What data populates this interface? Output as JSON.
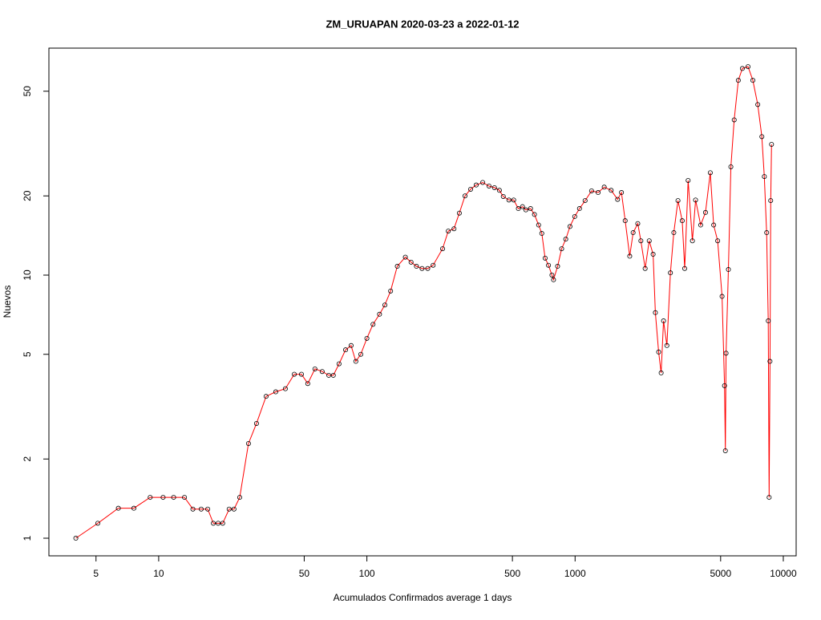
{
  "chart_data": {
    "type": "line",
    "title": "ZM_URUAPAN 2020-03-23 a 2022-01-12",
    "x_label": "Acumulados Confirmados average  1  days",
    "y_label": "Nuevos",
    "log_x": true,
    "log_y": true,
    "color": "#ff0000",
    "marker_color": "#000000",
    "xlim": [
      2.97,
      11527
    ],
    "ylim": [
      0.857,
      72.9
    ],
    "xticks": [
      5,
      10,
      50,
      100,
      500,
      1000,
      5000,
      10000
    ],
    "yticks": [
      1,
      2,
      5,
      10,
      20,
      50
    ],
    "x": [
      4,
      5.1,
      6.4,
      7.6,
      9.1,
      10.5,
      11.8,
      13.3,
      14.6,
      16,
      17.2,
      18.3,
      19.3,
      20.3,
      21.8,
      23,
      24.5,
      27,
      29.5,
      32.8,
      36.5,
      40.6,
      44.8,
      48.5,
      52,
      56.3,
      61,
      65.6,
      69,
      73.5,
      79,
      84,
      88.5,
      93.5,
      100,
      107,
      115,
      122,
      130,
      140,
      153,
      163,
      173,
      184,
      196,
      208,
      231,
      246,
      262,
      278,
      296,
      315,
      335,
      360,
      386,
      410,
      433,
      452,
      481,
      507,
      534,
      559,
      580,
      611,
      638,
      668,
      692,
      718,
      745,
      774,
      788,
      824,
      862,
      902,
      945,
      996,
      1050,
      1117,
      1200,
      1290,
      1380,
      1490,
      1600,
      1670,
      1740,
      1830,
      1900,
      2000,
      2070,
      2170,
      2270,
      2370,
      2430,
      2520,
      2590,
      2660,
      2760,
      2870,
      2980,
      3120,
      3270,
      3360,
      3490,
      3660,
      3790,
      4010,
      4230,
      4460,
      4630,
      4840,
      5080,
      5220,
      5270,
      5310,
      5450,
      5600,
      5810,
      6080,
      6360,
      6770,
      7140,
      7540,
      7890,
      8110,
      8320,
      8470,
      8550,
      8630,
      8700,
      8780
    ],
    "values": [
      1,
      1.14,
      1.3,
      1.3,
      1.43,
      1.43,
      1.43,
      1.43,
      1.29,
      1.29,
      1.29,
      1.14,
      1.14,
      1.14,
      1.29,
      1.29,
      1.43,
      2.29,
      2.73,
      3.46,
      3.6,
      3.7,
      4.2,
      4.2,
      3.87,
      4.4,
      4.3,
      4.16,
      4.16,
      4.6,
      5.2,
      5.4,
      4.7,
      5,
      5.75,
      6.5,
      7.1,
      7.7,
      8.7,
      10.8,
      11.7,
      11.2,
      10.8,
      10.6,
      10.6,
      10.9,
      12.6,
      14.7,
      15,
      17.2,
      20,
      21.2,
      22,
      22.5,
      21.8,
      21.5,
      21,
      19.9,
      19.3,
      19.3,
      17.9,
      18.2,
      17.7,
      17.9,
      17,
      15.5,
      14.4,
      11.6,
      10.9,
      10,
      9.6,
      10.8,
      12.6,
      13.7,
      15.3,
      16.7,
      17.9,
      19.2,
      20.9,
      20.6,
      21.6,
      21,
      19.4,
      20.6,
      16.1,
      11.8,
      14.5,
      15.7,
      13.5,
      10.6,
      13.5,
      12,
      7.2,
      5.1,
      4.25,
      6.7,
      5.4,
      10.2,
      14.5,
      19.2,
      16.1,
      10.6,
      22.9,
      13.5,
      19.3,
      15.5,
      17.3,
      24.5,
      15.5,
      13.5,
      8.3,
      3.8,
      2.15,
      5.05,
      10.5,
      25.8,
      38.9,
      55,
      61,
      62,
      55,
      44.5,
      33.6,
      23.7,
      14.5,
      6.7,
      1.43,
      4.7,
      19.2,
      31.4
    ]
  }
}
